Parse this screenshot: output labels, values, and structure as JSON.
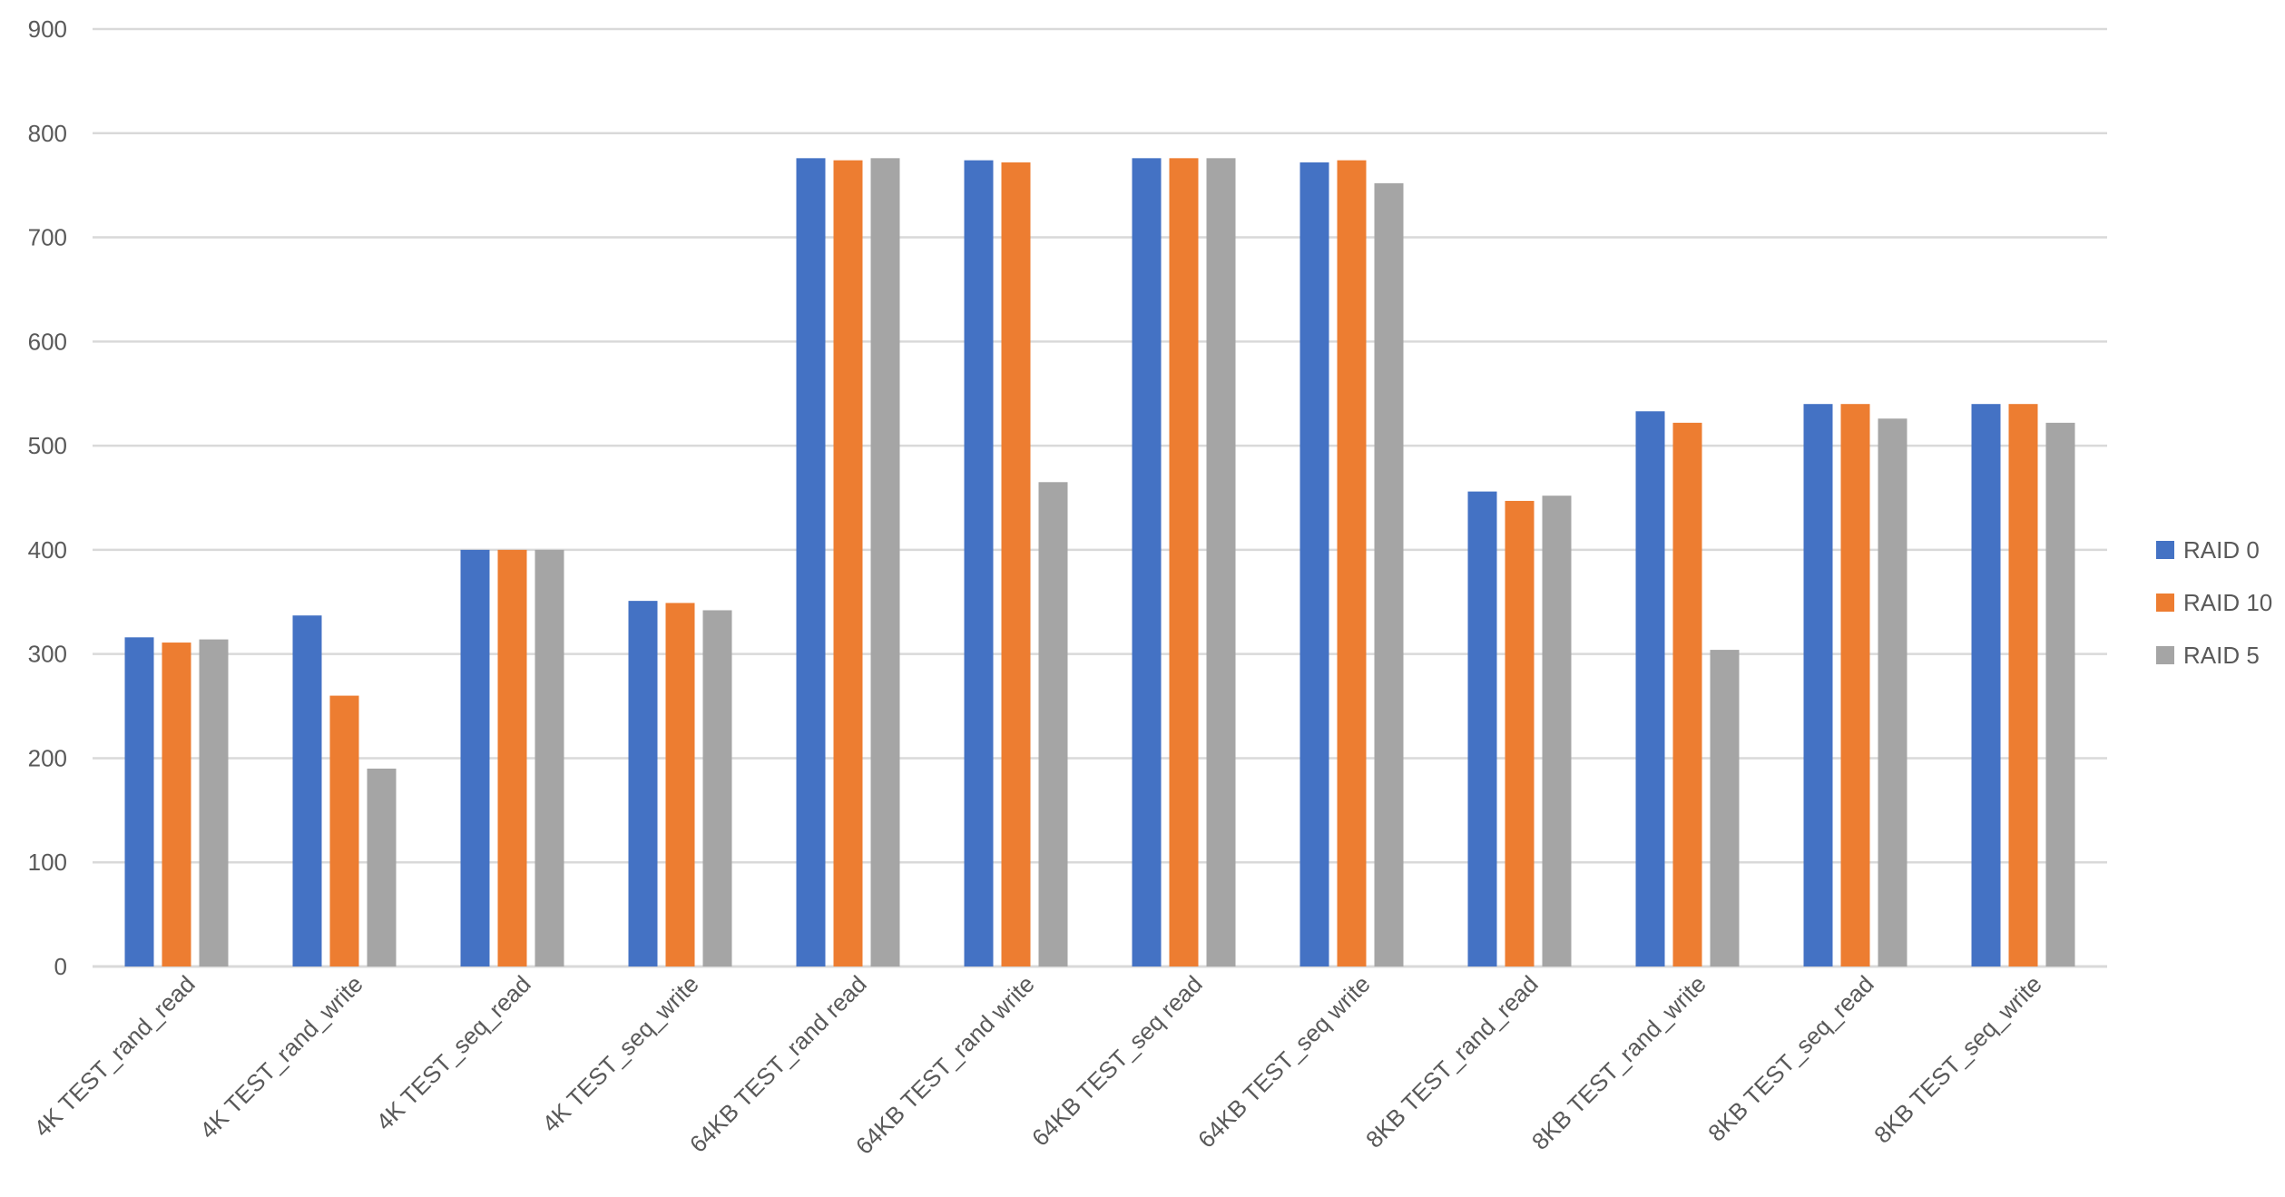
{
  "chart_data": {
    "type": "bar",
    "title": "",
    "xlabel": "",
    "ylabel": "",
    "ylim": [
      0,
      900
    ],
    "yticks": [
      0,
      100,
      200,
      300,
      400,
      500,
      600,
      700,
      800,
      900
    ],
    "grid": true,
    "legend_position": "right",
    "categories": [
      "4K TEST_rand_read",
      "4K TEST_rand_write",
      "4K TEST_seq_read",
      "4K TEST_seq_write",
      "64KB TEST_rand read",
      "64KB TEST_rand write",
      "64KB TEST_seq read",
      "64KB TEST_seq write",
      "8KB TEST_rand_read",
      "8KB TEST_rand_write",
      "8KB TEST_seq_read",
      "8KB TEST_seq_write"
    ],
    "series": [
      {
        "name": "RAID 0",
        "color": "#4472C4",
        "values": [
          316,
          337,
          400,
          351,
          776,
          774,
          776,
          772,
          456,
          533,
          540,
          540
        ]
      },
      {
        "name": "RAID 10",
        "color": "#ED7D31",
        "values": [
          311,
          260,
          400,
          349,
          774,
          772,
          776,
          774,
          447,
          522,
          540,
          540
        ]
      },
      {
        "name": "RAID 5",
        "color": "#A5A5A5",
        "values": [
          314,
          190,
          400,
          342,
          776,
          465,
          776,
          752,
          452,
          304,
          526,
          522
        ]
      }
    ]
  }
}
